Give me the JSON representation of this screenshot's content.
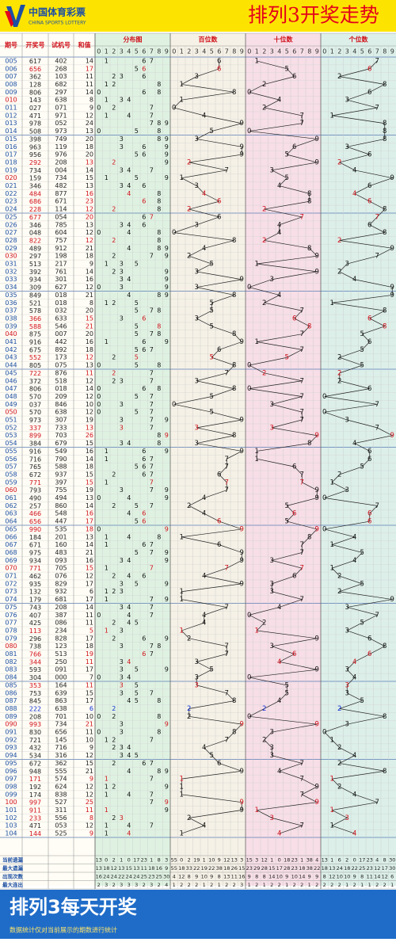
{
  "header": {
    "logo_name": "中国体育彩票",
    "logo_en": "CHINA SPORTS LOTTERY",
    "title": "排列3开奖走势"
  },
  "columns": {
    "issue": "期号",
    "draw": "开奖号",
    "trial": "试机号",
    "sum": "和值",
    "distribution": "分布图",
    "hundreds": "百位数",
    "tens": "十位数",
    "units": "个位数"
  },
  "digits": [
    0,
    1,
    2,
    3,
    4,
    5,
    6,
    7,
    8,
    9
  ],
  "rows": [
    [
      "005",
      [
        6,
        1,
        7
      ],
      "402",
      14
    ],
    [
      "006",
      [
        6,
        5,
        6
      ],
      "268",
      17
    ],
    [
      "007",
      [
        3,
        6,
        2
      ],
      "103",
      11
    ],
    [
      "008",
      [
        1,
        2,
        8
      ],
      "682",
      11
    ],
    [
      "009",
      [
        8,
        0,
        6
      ],
      "297",
      14
    ],
    [
      "010",
      [
        1,
        4,
        3
      ],
      "638",
      8
    ],
    [
      "011",
      [
        0,
        2,
        7
      ],
      "071",
      9
    ],
    [
      "012",
      [
        4,
        7,
        1
      ],
      "971",
      12
    ],
    [
      "013",
      [
        9,
        7,
        8
      ],
      "052",
      24
    ],
    [
      "014",
      [
        5,
        0,
        8
      ],
      "973",
      13
    ],
    [
      "015",
      [
        3,
        9,
        8
      ],
      "749",
      20
    ],
    [
      "016",
      [
        9,
        6,
        3
      ],
      "119",
      18
    ],
    [
      "017",
      [
        9,
        5,
        6
      ],
      "976",
      20
    ],
    [
      "018",
      [
        2,
        9,
        2
      ],
      "208",
      13
    ],
    [
      "019",
      [
        7,
        3,
        4
      ],
      "004",
      14
    ],
    [
      "020",
      [
        1,
        5,
        9
      ],
      "734",
      15
    ],
    [
      "021",
      [
        3,
        4,
        6
      ],
      "482",
      13
    ],
    [
      "022",
      [
        4,
        8,
        4
      ],
      "877",
      16
    ],
    [
      "023",
      [
        6,
        8,
        6
      ],
      "671",
      23
    ],
    [
      "024",
      [
        2,
        2,
        8
      ],
      "114",
      12
    ],
    [
      "025",
      [
        6,
        7,
        7
      ],
      "054",
      20
    ],
    [
      "026",
      [
        3,
        4,
        6
      ],
      "785",
      13
    ],
    [
      "027",
      [
        0,
        4,
        8
      ],
      "604",
      12
    ],
    [
      "028",
      [
        8,
        2,
        2
      ],
      "757",
      12
    ],
    [
      "029",
      [
        4,
        8,
        9
      ],
      "912",
      21
    ],
    [
      "030",
      [
        2,
        9,
        7
      ],
      "198",
      18
    ],
    [
      "031",
      [
        5,
        1,
        3
      ],
      "217",
      9
    ],
    [
      "032",
      [
        3,
        9,
        2
      ],
      "761",
      14
    ],
    [
      "033",
      [
        9,
        3,
        4
      ],
      "301",
      16
    ],
    [
      "034",
      [
        3,
        0,
        9
      ],
      "627",
      12
    ],
    [
      "035",
      [
        8,
        4,
        9
      ],
      "018",
      21
    ],
    [
      "036",
      [
        5,
        2,
        1
      ],
      "018",
      8
    ],
    [
      "037",
      [
        5,
        7,
        8
      ],
      "032",
      20
    ],
    [
      "038",
      [
        3,
        6,
        6
      ],
      "633",
      15
    ],
    [
      "039",
      [
        5,
        8,
        8
      ],
      "546",
      21
    ],
    [
      "040",
      [
        8,
        7,
        5
      ],
      "007",
      20
    ],
    [
      "041",
      [
        9,
        1,
        6
      ],
      "442",
      16
    ],
    [
      "042",
      [
        6,
        7,
        5
      ],
      "892",
      18
    ],
    [
      "043",
      [
        5,
        5,
        2
      ],
      "173",
      12
    ],
    [
      "044",
      [
        8,
        0,
        5
      ],
      "075",
      13
    ],
    [
      "045",
      [
        7,
        2,
        2
      ],
      "876",
      11
    ],
    [
      "046",
      [
        3,
        7,
        2
      ],
      "518",
      12
    ],
    [
      "047",
      [
        8,
        0,
        6
      ],
      "018",
      14
    ],
    [
      "048",
      [
        5,
        7,
        0
      ],
      "209",
      12
    ],
    [
      "049",
      [
        0,
        3,
        7
      ],
      "846",
      10
    ],
    [
      "050",
      [
        5,
        7,
        0
      ],
      "638",
      12
    ],
    [
      "051",
      [
        9,
        7,
        3
      ],
      "307",
      19
    ],
    [
      "052",
      [
        3,
        3,
        7
      ],
      "733",
      13
    ],
    [
      "053",
      [
        8,
        9,
        9
      ],
      "703",
      26
    ],
    [
      "054",
      [
        3,
        8,
        4
      ],
      "679",
      15
    ],
    [
      "055",
      [
        9,
        1,
        6
      ],
      "549",
      16
    ],
    [
      "056",
      [
        7,
        1,
        6
      ],
      "790",
      14
    ],
    [
      "057",
      [
        7,
        6,
        5
      ],
      "588",
      18
    ],
    [
      "058",
      [
        6,
        7,
        2
      ],
      "937",
      15
    ],
    [
      "059",
      [
        7,
        7,
        1
      ],
      "397",
      15
    ],
    [
      "060",
      [
        7,
        9,
        3
      ],
      "755",
      19
    ],
    [
      "061",
      [
        4,
        9,
        0
      ],
      "494",
      13
    ],
    [
      "062",
      [
        2,
        5,
        7
      ],
      "860",
      14
    ],
    [
      "063",
      [
        4,
        6,
        6
      ],
      "548",
      16
    ],
    [
      "064",
      [
        6,
        5,
        6
      ],
      "447",
      17
    ],
    [
      "065",
      [
        9,
        9,
        0
      ],
      "535",
      18
    ],
    [
      "066",
      [
        1,
        8,
        4
      ],
      "201",
      13
    ],
    [
      "067",
      [
        6,
        7,
        1
      ],
      "160",
      14
    ],
    [
      "068",
      [
        9,
        7,
        5
      ],
      "483",
      21
    ],
    [
      "069",
      [
        9,
        3,
        4
      ],
      "093",
      16
    ],
    [
      "070",
      [
        7,
        7,
        1
      ],
      "705",
      15
    ],
    [
      "071",
      [
        4,
        6,
        2
      ],
      "076",
      12
    ],
    [
      "072",
      [
        9,
        3,
        5
      ],
      "829",
      17
    ],
    [
      "073",
      [
        1,
        3,
        2
      ],
      "932",
      6
    ],
    [
      "074",
      [
        1,
        7,
        9
      ],
      "681",
      17
    ],
    [
      "075",
      [
        7,
        4,
        3
      ],
      "208",
      14
    ],
    [
      "076",
      [
        4,
        0,
        7
      ],
      "387",
      11
    ],
    [
      "077",
      [
        4,
        2,
        5
      ],
      "086",
      11
    ],
    [
      "078",
      [
        1,
        1,
        3
      ],
      "234",
      5
    ],
    [
      "079",
      [
        2,
        9,
        6
      ],
      "828",
      17
    ],
    [
      "080",
      [
        7,
        3,
        8
      ],
      "123",
      18
    ],
    [
      "081",
      [
        7,
        6,
        6
      ],
      "513",
      19
    ],
    [
      "082",
      [
        3,
        4,
        4
      ],
      "250",
      11
    ],
    [
      "083",
      [
        5,
        9,
        3
      ],
      "091",
      17
    ],
    [
      "084",
      [
        3,
        0,
        4
      ],
      "000",
      7
    ],
    [
      "085",
      [
        3,
        5,
        3
      ],
      "164",
      11
    ],
    [
      "086",
      [
        7,
        5,
        3
      ],
      "639",
      15
    ],
    [
      "087",
      [
        8,
        4,
        5
      ],
      "863",
      17
    ],
    [
      "088",
      [
        2,
        2,
        2
      ],
      "638",
      6
    ],
    [
      "089",
      [
        2,
        0,
        8
      ],
      "701",
      10
    ],
    [
      "090",
      [
        9,
        9,
        3
      ],
      "734",
      21
    ],
    [
      "091",
      [
        8,
        3,
        0
      ],
      "656",
      11
    ],
    [
      "092",
      [
        7,
        2,
        1
      ],
      "145",
      10
    ],
    [
      "093",
      [
        4,
        3,
        2
      ],
      "716",
      9
    ],
    [
      "094",
      [
        5,
        3,
        4
      ],
      "316",
      12
    ],
    [
      "095",
      [
        6,
        7,
        2
      ],
      "362",
      15
    ],
    [
      "096",
      [
        9,
        4,
        8
      ],
      "555",
      21
    ],
    [
      "097",
      [
        1,
        7,
        1
      ],
      "574",
      9
    ],
    [
      "098",
      [
        1,
        9,
        2
      ],
      "624",
      12
    ],
    [
      "099",
      [
        1,
        7,
        4
      ],
      "838",
      12
    ],
    [
      "100",
      [
        9,
        9,
        7
      ],
      "527",
      25
    ],
    [
      "101",
      [
        9,
        1,
        1
      ],
      "311",
      11
    ],
    [
      "102",
      [
        2,
        3,
        3
      ],
      "556",
      8
    ],
    [
      "103",
      [
        4,
        7,
        1
      ],
      "053",
      12
    ],
    [
      "104",
      [
        1,
        4,
        4
      ],
      "525",
      9
    ]
  ],
  "stats": [
    {
      "label": "当前遗漏",
      "distribution": [
        13,
        0,
        2,
        1,
        0,
        17,
        23,
        1,
        8,
        3
      ],
      "hundreds": [
        55,
        0,
        2,
        19,
        1,
        10,
        9,
        12,
        13,
        3
      ],
      "tens": [
        15,
        3,
        12,
        1,
        0,
        18,
        23,
        1,
        38,
        4
      ],
      "units": [
        13,
        1,
        6,
        2,
        0,
        17,
        23,
        4,
        8,
        30
      ]
    },
    {
      "label": "最大遗漏",
      "distribution": [
        13,
        18,
        12,
        13,
        15,
        13,
        11,
        18,
        16,
        9
      ],
      "hundreds": [
        55,
        18,
        33,
        22,
        19,
        22,
        38,
        18,
        26,
        15
      ],
      "tens": [
        23,
        29,
        28,
        15,
        17,
        28,
        23,
        18,
        38,
        22
      ],
      "units": [
        18,
        13,
        24,
        18,
        22,
        25,
        23,
        12,
        17,
        30
      ]
    },
    {
      "label": "出现次数",
      "distribution": [
        16,
        24,
        24,
        22,
        24,
        24,
        25,
        23,
        25,
        30
      ],
      "hundreds": [
        4,
        12,
        8,
        9,
        10,
        9,
        8,
        13,
        11,
        16
      ],
      "tens": [
        9,
        8,
        8,
        14,
        10,
        9,
        10,
        14,
        9,
        9
      ],
      "units": [
        8,
        12,
        10,
        10,
        9,
        8,
        11,
        14,
        12,
        6
      ]
    },
    {
      "label": "最大连出",
      "distribution": [
        2,
        3,
        2,
        3,
        3,
        3,
        2,
        3,
        2,
        4
      ],
      "hundreds": [
        1,
        2,
        2,
        2,
        1,
        2,
        1,
        2,
        2,
        3
      ],
      "tens": [
        1,
        2,
        1,
        2,
        2,
        1,
        2,
        2,
        1,
        2
      ],
      "units": [
        2,
        2,
        2,
        1,
        2,
        1,
        1,
        2,
        2,
        1
      ]
    }
  ],
  "footer": {
    "title": "排列3每天开奖",
    "note": "数据统计仅对当前展示的期数进行统计"
  }
}
